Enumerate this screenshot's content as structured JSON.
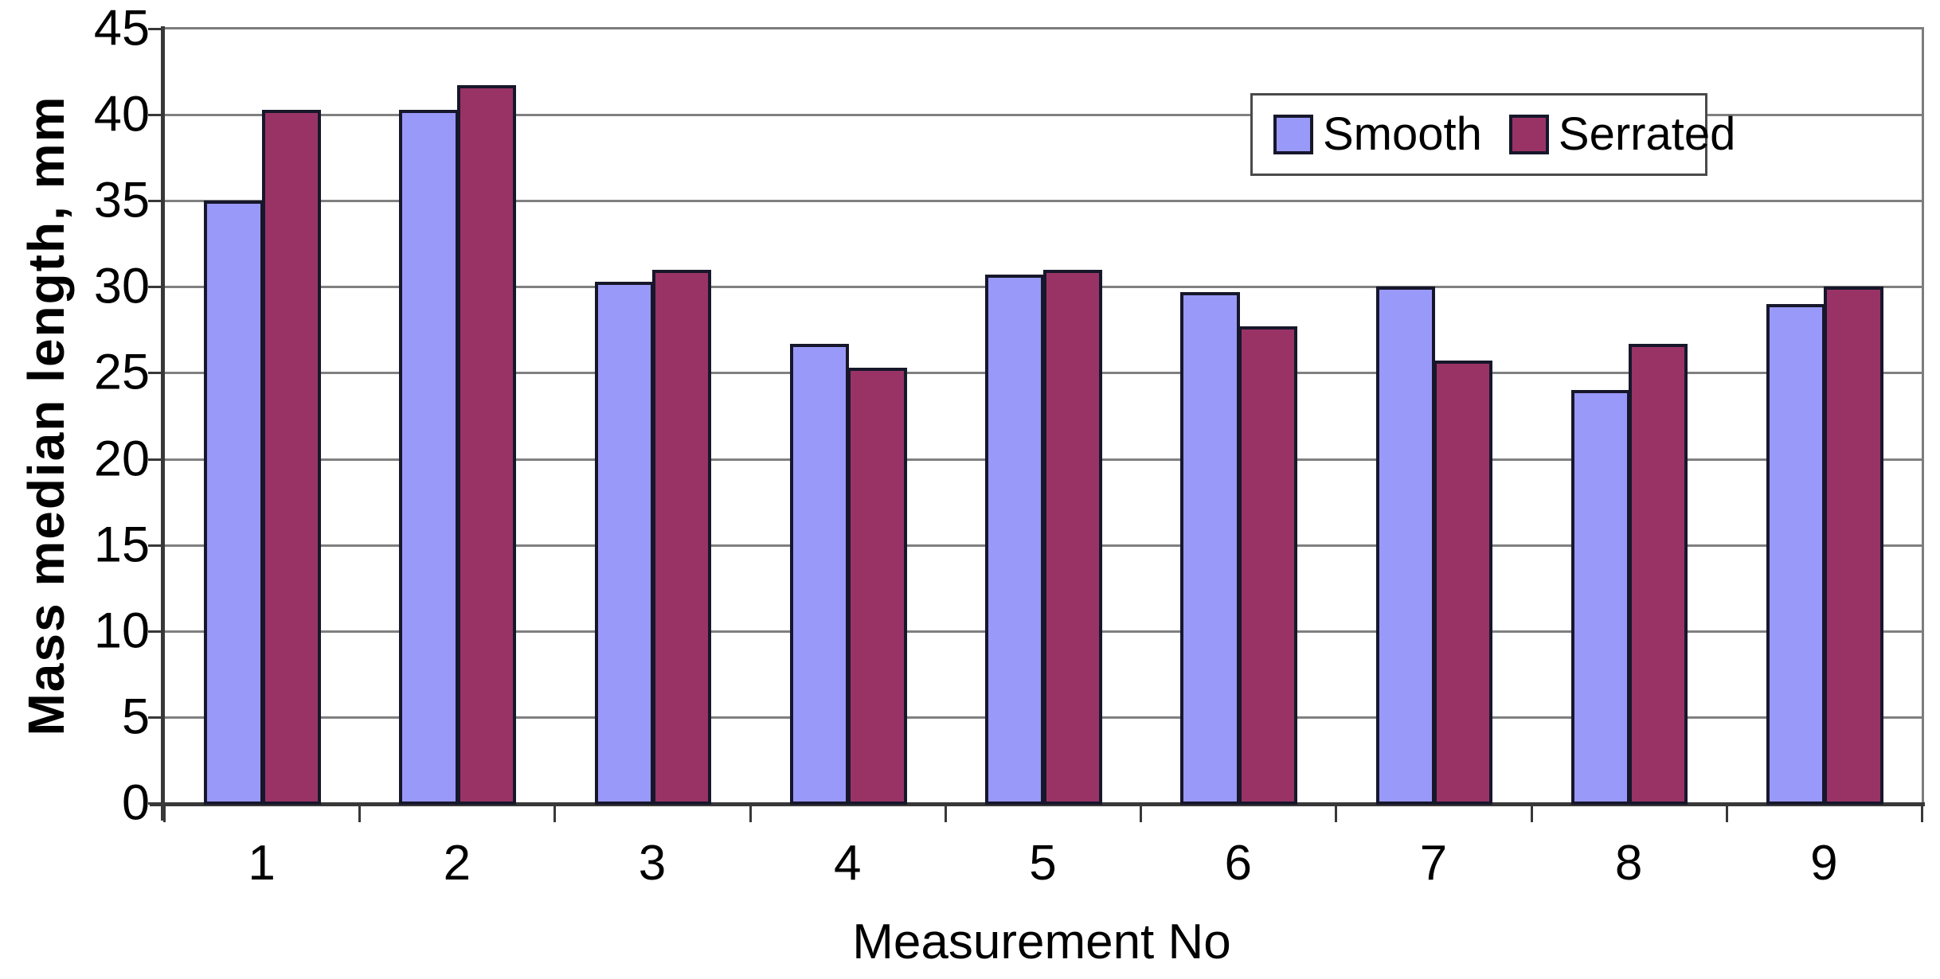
{
  "chart_data": {
    "type": "bar",
    "title": "",
    "xlabel": "Measurement No",
    "ylabel": "Mass median length, mm",
    "categories": [
      "1",
      "2",
      "3",
      "4",
      "5",
      "6",
      "7",
      "8",
      "9"
    ],
    "series": [
      {
        "name": "Smooth",
        "color": "#9999fa",
        "values": [
          35.0,
          40.3,
          30.3,
          26.7,
          30.7,
          29.7,
          30.0,
          24.0,
          29.0
        ]
      },
      {
        "name": "Serrated",
        "color": "#993366",
        "values": [
          40.3,
          41.7,
          31.0,
          25.3,
          31.0,
          27.7,
          25.7,
          26.7,
          30.0
        ]
      }
    ],
    "ylim": [
      0,
      45
    ],
    "ytick_step": 5,
    "ytick_labels": [
      "45",
      "40",
      "35",
      "30",
      "25",
      "20",
      "15",
      "10",
      "5",
      "0"
    ],
    "grid": true,
    "legend_position": "top-right",
    "style": {
      "background": "#ffffff",
      "gridline_color": "#808080",
      "axis_color": "#383838",
      "bar_border_color": "#17172b",
      "legend_border_color": "#4a4a4a",
      "text_color": "#000000"
    }
  }
}
